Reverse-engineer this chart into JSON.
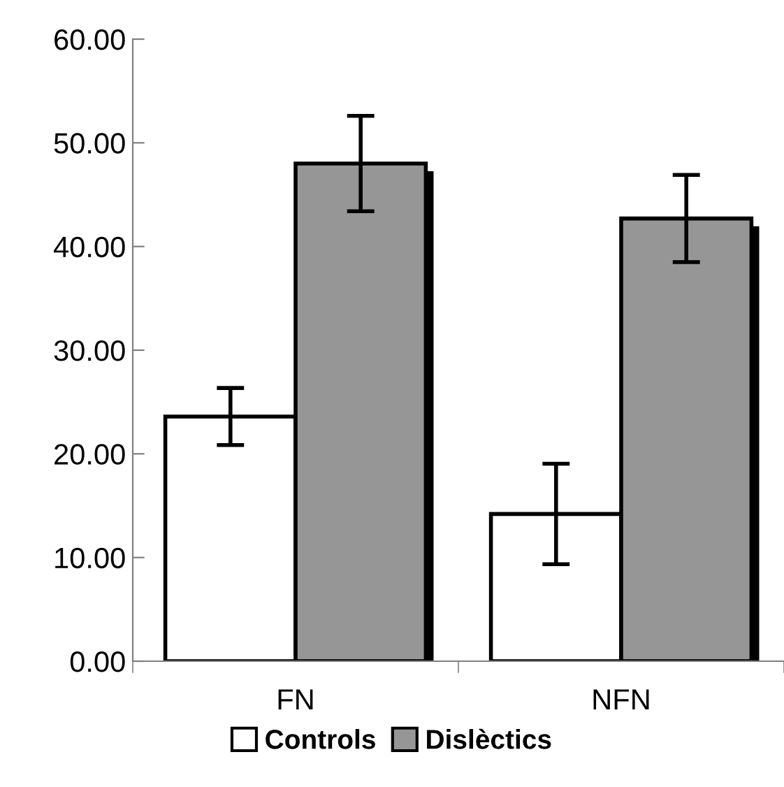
{
  "chart_data": {
    "type": "bar",
    "categories": [
      "FN",
      "NFN"
    ],
    "series": [
      {
        "name": "Controls",
        "color": "#ffffff",
        "values": [
          23.6,
          14.2
        ],
        "errors": [
          2.75,
          4.85
        ]
      },
      {
        "name": "Dislèctics",
        "color": "#969696",
        "values": [
          48.0,
          42.7
        ],
        "errors": [
          4.6,
          4.2
        ]
      }
    ],
    "ylim": [
      0,
      60
    ],
    "yticks": [
      {
        "value": 0,
        "label": "0.00"
      },
      {
        "value": 10,
        "label": "10.00"
      },
      {
        "value": 20,
        "label": "20.00"
      },
      {
        "value": 30,
        "label": "30.00"
      },
      {
        "value": 40,
        "label": "40.00"
      },
      {
        "value": 50,
        "label": "50.00"
      },
      {
        "value": 60,
        "label": "60.00"
      }
    ],
    "grid": false,
    "legend": "bottom"
  }
}
